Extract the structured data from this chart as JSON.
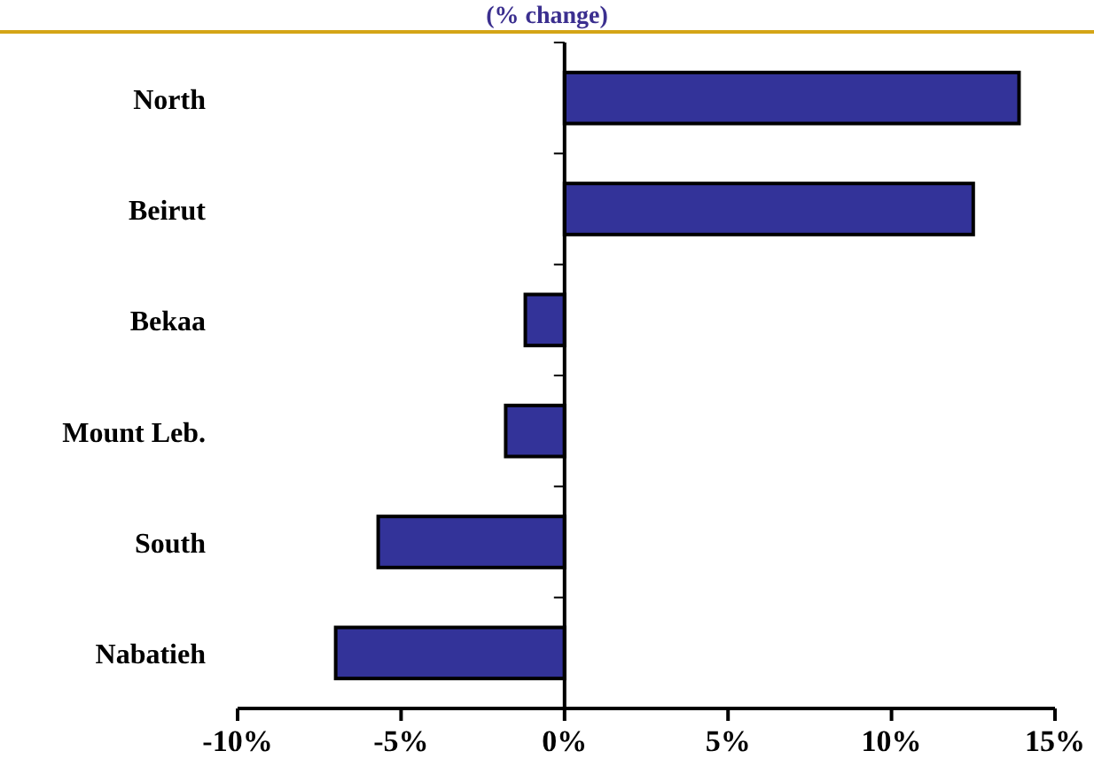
{
  "chart_data": {
    "type": "bar",
    "orientation": "horizontal",
    "title": "(% change)",
    "categories": [
      "North",
      "Beirut",
      "Bekaa",
      "Mount Leb.",
      "South",
      "Nabatieh"
    ],
    "values": [
      13.9,
      12.5,
      -1.2,
      -1.8,
      -5.7,
      -7.0
    ],
    "color": "#333399",
    "xlim": [
      -10,
      15
    ],
    "xticks": [
      {
        "value": -10,
        "label": "-10%"
      },
      {
        "value": -5,
        "label": "-5%"
      },
      {
        "value": 0,
        "label": "0%"
      },
      {
        "value": 5,
        "label": "5%"
      },
      {
        "value": 10,
        "label": "10%"
      },
      {
        "value": 15,
        "label": "15%"
      }
    ]
  }
}
